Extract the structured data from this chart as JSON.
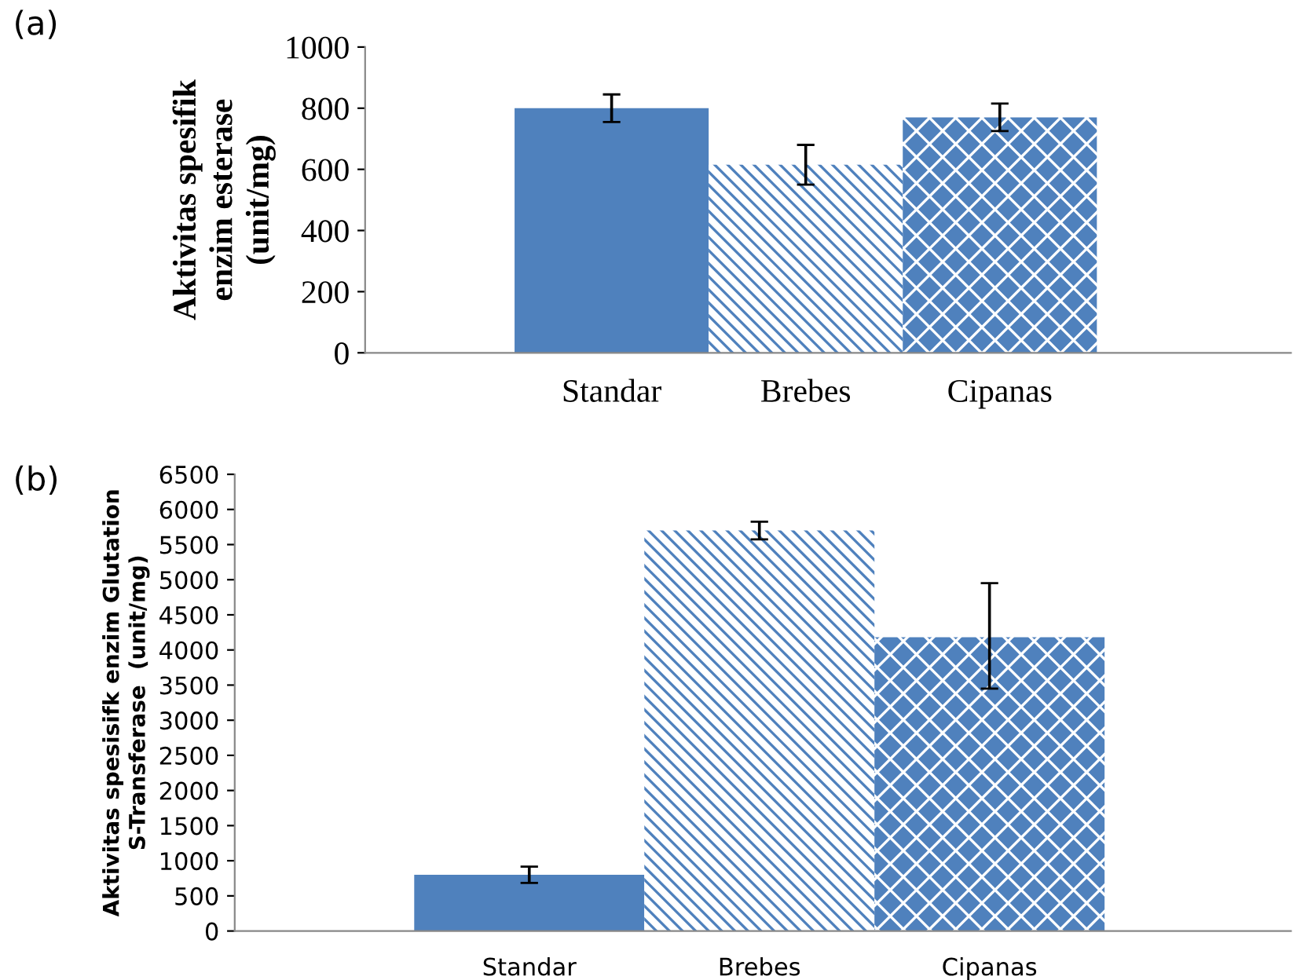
{
  "chart_data": [
    {
      "type": "bar",
      "ylabel": "Aktivitas spesifik\nenzim esterase\n(unit/mg)",
      "annotations": [
        "(a)"
      ],
      "categories": [
        "Standar",
        "Brebes",
        "Cipanas"
      ],
      "values": [
        800,
        615,
        770
      ],
      "errors": [
        45,
        65,
        45
      ],
      "colors": [
        "#4f81bd",
        "#4f81bd",
        "#4f81bd"
      ],
      "ylim": [
        0,
        1000
      ],
      "yticks": [
        0,
        200,
        400,
        600,
        800,
        1000
      ],
      "grid": false,
      "legend": false
    },
    {
      "type": "bar",
      "ylabel": "Aktivitas spesisifk enzim Glutation\nS-Transferase  (unit/mg)",
      "annotations": [
        "(b)"
      ],
      "categories": [
        "Standar",
        "Brebes",
        "Cipanas"
      ],
      "values": [
        800,
        5700,
        4180
      ],
      "errors": [
        115,
        125,
        [
          3450,
          4950
        ]
      ],
      "colors": [
        "#4f81bd",
        "#4f81bd",
        "#4f81bd"
      ],
      "ylim": [
        0,
        6500
      ],
      "yticks": [
        0,
        500,
        1000,
        1500,
        2000,
        2500,
        3000,
        3500,
        4000,
        4500,
        5000,
        5500,
        6000,
        6500
      ],
      "grid": false,
      "legend": false
    }
  ]
}
